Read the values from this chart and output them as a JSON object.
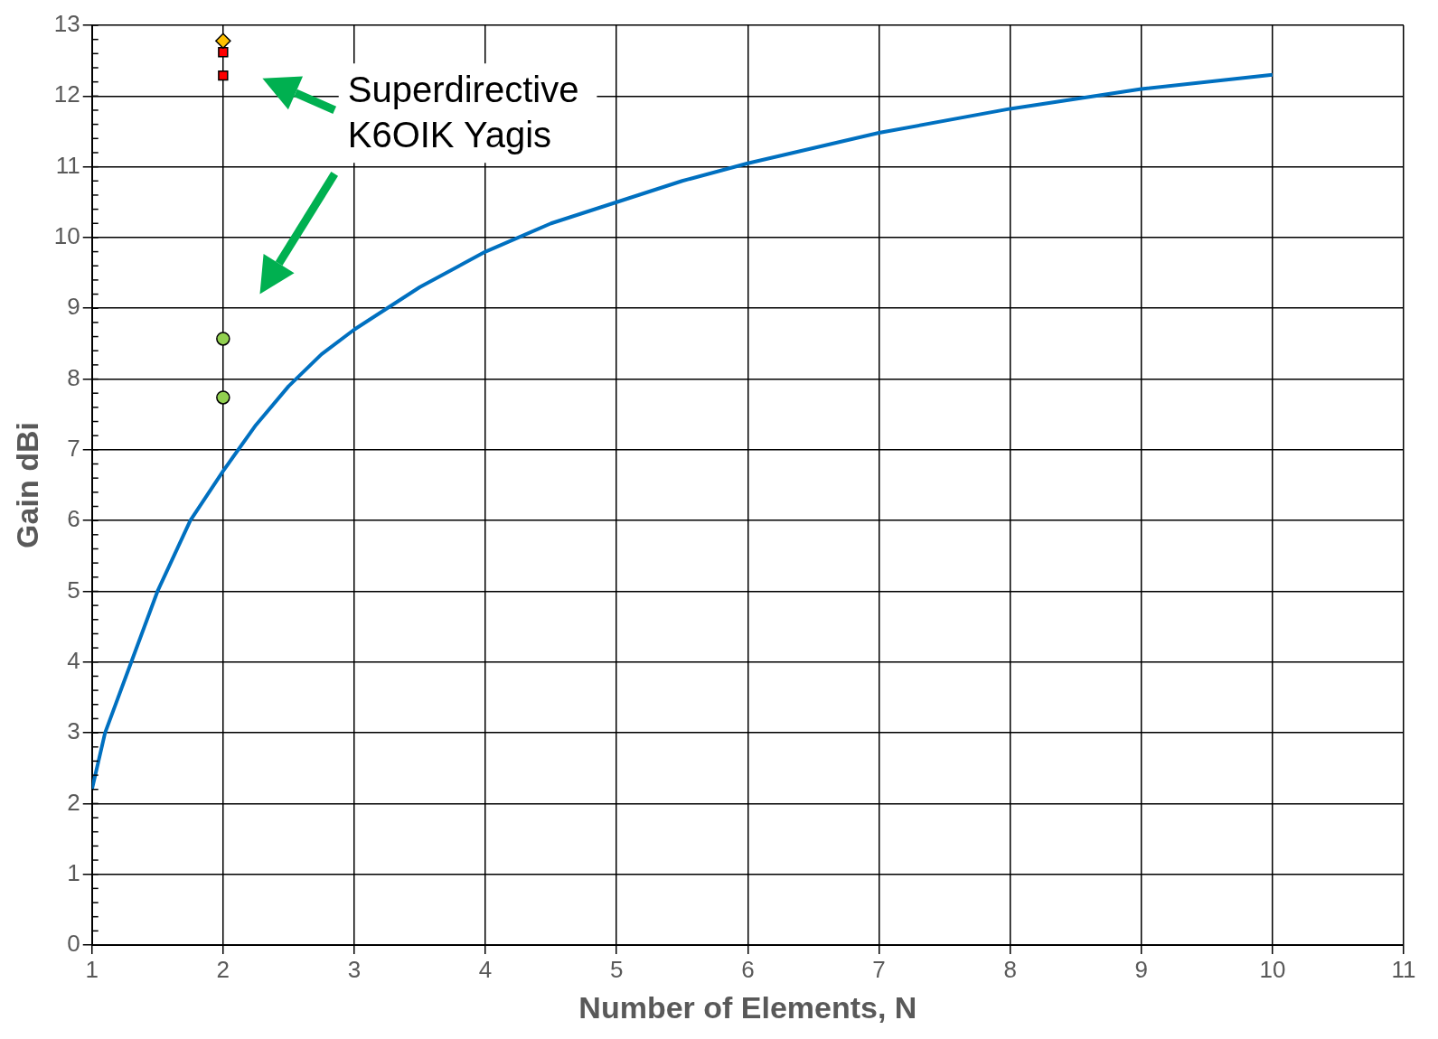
{
  "chart_data": {
    "type": "line",
    "xlabel": "Number of Elements, N",
    "ylabel": "Gain dBi",
    "xlim": [
      1,
      11
    ],
    "xticks": [
      1,
      2,
      3,
      4,
      5,
      6,
      7,
      8,
      9,
      10,
      11
    ],
    "ylim": [
      0,
      13
    ],
    "yticks": [
      0,
      1,
      2,
      3,
      4,
      5,
      6,
      7,
      8,
      9,
      10,
      11,
      12,
      13
    ],
    "grid": true,
    "annotations": [
      "Superdirective K6OIK Yagis"
    ],
    "series": [
      {
        "color": "#0070c0",
        "marker": "none",
        "x": [
          1,
          1.1,
          1.3,
          1.5,
          1.75,
          2,
          2.25,
          2.5,
          2.75,
          3,
          3.5,
          4,
          4.5,
          5,
          5.5,
          6,
          7,
          8,
          9,
          10
        ],
        "values": [
          2.2,
          3.0,
          4.0,
          5.0,
          6.0,
          6.7,
          7.35,
          7.9,
          8.35,
          8.7,
          9.3,
          9.8,
          10.2,
          10.5,
          10.8,
          11.05,
          11.48,
          11.82,
          12.1,
          12.3
        ]
      },
      {
        "type": "scatter",
        "color": "#ffc000",
        "marker": "diamond",
        "x": [
          2
        ],
        "values": [
          12.78
        ]
      },
      {
        "type": "scatter",
        "color": "#ff0000",
        "marker": "square",
        "x": [
          2,
          2
        ],
        "values": [
          12.62,
          12.29
        ]
      },
      {
        "type": "scatter",
        "color": "#92d050",
        "marker": "circle",
        "x": [
          2,
          2
        ],
        "values": [
          8.57,
          7.74
        ]
      }
    ]
  }
}
